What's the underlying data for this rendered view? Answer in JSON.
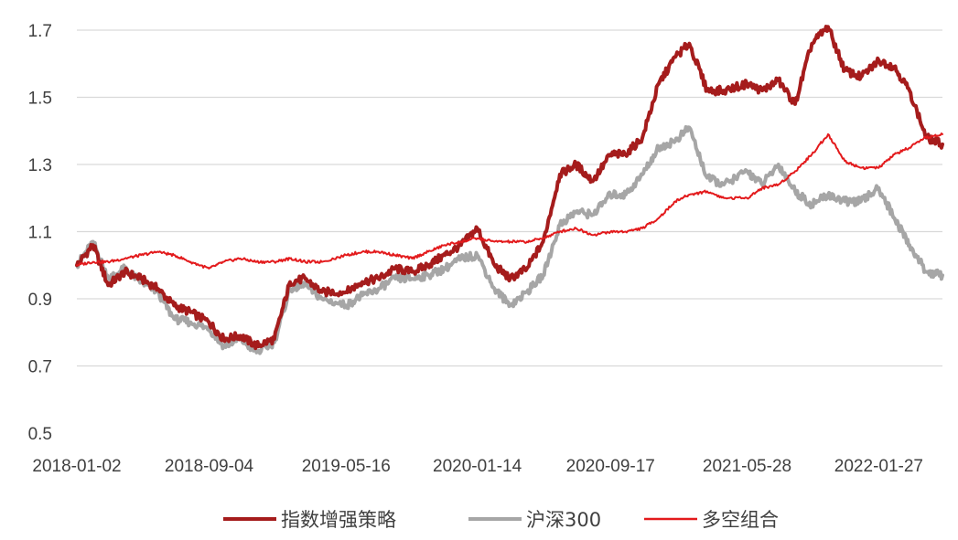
{
  "chart_data": {
    "type": "line",
    "title": "",
    "xlabel": "",
    "ylabel": "",
    "ylim": [
      0.5,
      1.7
    ],
    "yticks": [
      "0.5",
      "0.7",
      "0.9",
      "1.1",
      "1.3",
      "1.5",
      "1.7"
    ],
    "xticks": [
      "2018-01-02",
      "2018-09-04",
      "2019-05-16",
      "2020-01-14",
      "2020-09-17",
      "2021-05-28",
      "2022-01-27"
    ],
    "grid": true,
    "legend_position": "bottom",
    "x": [
      "2018-01-02",
      "2018-02-01",
      "2018-03-01",
      "2018-04-01",
      "2018-05-01",
      "2018-06-01",
      "2018-07-01",
      "2018-08-01",
      "2018-09-04",
      "2018-10-01",
      "2018-11-01",
      "2018-12-01",
      "2019-01-03",
      "2019-02-01",
      "2019-03-01",
      "2019-04-01",
      "2019-05-16",
      "2019-06-15",
      "2019-07-15",
      "2019-08-15",
      "2019-09-15",
      "2019-10-15",
      "2019-11-15",
      "2019-12-15",
      "2020-01-14",
      "2020-02-15",
      "2020-03-15",
      "2020-04-15",
      "2020-05-15",
      "2020-06-15",
      "2020-07-15",
      "2020-08-15",
      "2020-09-17",
      "2020-10-15",
      "2020-11-15",
      "2020-12-15",
      "2021-01-15",
      "2021-02-10",
      "2021-03-15",
      "2021-04-15",
      "2021-05-28",
      "2021-06-25",
      "2021-07-25",
      "2021-08-25",
      "2021-09-25",
      "2021-10-25",
      "2021-11-25",
      "2021-12-25",
      "2022-01-27",
      "2022-02-25",
      "2022-03-25",
      "2022-04-25",
      "2022-05-25"
    ],
    "series": [
      {
        "name": "指数增强策略",
        "color": "#a51c1c",
        "values": [
          1.0,
          1.06,
          0.94,
          0.98,
          0.96,
          0.93,
          0.88,
          0.86,
          0.83,
          0.78,
          0.79,
          0.76,
          0.78,
          0.95,
          0.96,
          0.92,
          0.92,
          0.95,
          0.96,
          0.99,
          0.98,
          1.0,
          1.03,
          1.06,
          1.11,
          1.0,
          0.96,
          0.99,
          1.07,
          1.27,
          1.3,
          1.25,
          1.33,
          1.33,
          1.38,
          1.54,
          1.62,
          1.66,
          1.52,
          1.52,
          1.54,
          1.52,
          1.55,
          1.48,
          1.66,
          1.71,
          1.58,
          1.56,
          1.61,
          1.59,
          1.52,
          1.38,
          1.36
        ]
      },
      {
        "name": "沪深300",
        "color": "#a6a6a6",
        "values": [
          1.0,
          1.07,
          0.96,
          0.99,
          0.95,
          0.92,
          0.84,
          0.83,
          0.81,
          0.76,
          0.78,
          0.74,
          0.77,
          0.93,
          0.94,
          0.9,
          0.88,
          0.91,
          0.93,
          0.96,
          0.96,
          0.97,
          0.99,
          1.02,
          1.03,
          0.93,
          0.88,
          0.92,
          0.97,
          1.12,
          1.16,
          1.15,
          1.21,
          1.21,
          1.27,
          1.35,
          1.37,
          1.41,
          1.26,
          1.24,
          1.28,
          1.24,
          1.3,
          1.22,
          1.18,
          1.21,
          1.19,
          1.19,
          1.23,
          1.14,
          1.06,
          0.98,
          0.97
        ]
      },
      {
        "name": "多空组合",
        "color": "#e31a1c",
        "values": [
          1.0,
          1.01,
          1.01,
          1.02,
          1.03,
          1.04,
          1.03,
          1.01,
          0.99,
          1.01,
          1.02,
          1.01,
          1.01,
          1.02,
          1.01,
          1.01,
          1.03,
          1.04,
          1.04,
          1.03,
          1.02,
          1.04,
          1.06,
          1.07,
          1.08,
          1.07,
          1.07,
          1.07,
          1.08,
          1.1,
          1.11,
          1.09,
          1.1,
          1.1,
          1.11,
          1.14,
          1.19,
          1.21,
          1.22,
          1.2,
          1.2,
          1.23,
          1.24,
          1.28,
          1.33,
          1.39,
          1.31,
          1.29,
          1.29,
          1.33,
          1.35,
          1.38,
          1.39
        ]
      }
    ]
  }
}
